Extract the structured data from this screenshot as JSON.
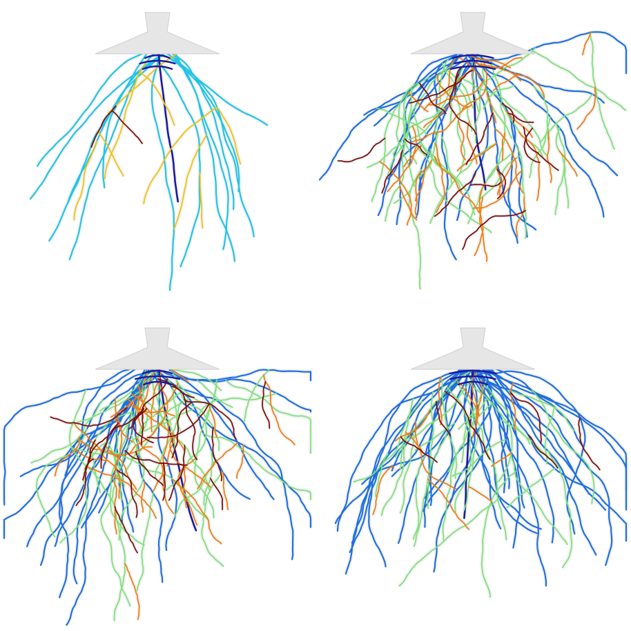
{
  "figure": {
    "type": "root-architecture-renderings",
    "panels": [
      {
        "id": "a",
        "order_colors": [
          "#1a1a9e",
          "#22c4e6",
          "#f2c20c",
          "#7a1010"
        ],
        "root_counts": {
          "order1": 1,
          "order2": 14,
          "order3": 9,
          "order4": 2
        },
        "seed": 11
      },
      {
        "id": "b",
        "order_colors": [
          "#1a1a9e",
          "#1f6fe0",
          "#7fe07a",
          "#f07d14",
          "#7a1010"
        ],
        "root_counts": {
          "order1": 1,
          "order2": 18,
          "order3": 40,
          "order4": 40,
          "order5": 16
        },
        "seed": 27
      },
      {
        "id": "c",
        "order_colors": [
          "#1a1a9e",
          "#1f6fe0",
          "#7fe07a",
          "#f07d14",
          "#7a1010"
        ],
        "root_counts": {
          "order1": 1,
          "order2": 22,
          "order3": 40,
          "order4": 34,
          "order5": 22
        },
        "seed": 53
      },
      {
        "id": "d",
        "order_colors": [
          "#1a1a9e",
          "#1f6fe0",
          "#7fe07a",
          "#f07d14",
          "#7a1010"
        ],
        "root_counts": {
          "order1": 1,
          "order2": 34,
          "order3": 32,
          "order4": 12,
          "order5": 6
        },
        "seed": 89
      }
    ]
  }
}
